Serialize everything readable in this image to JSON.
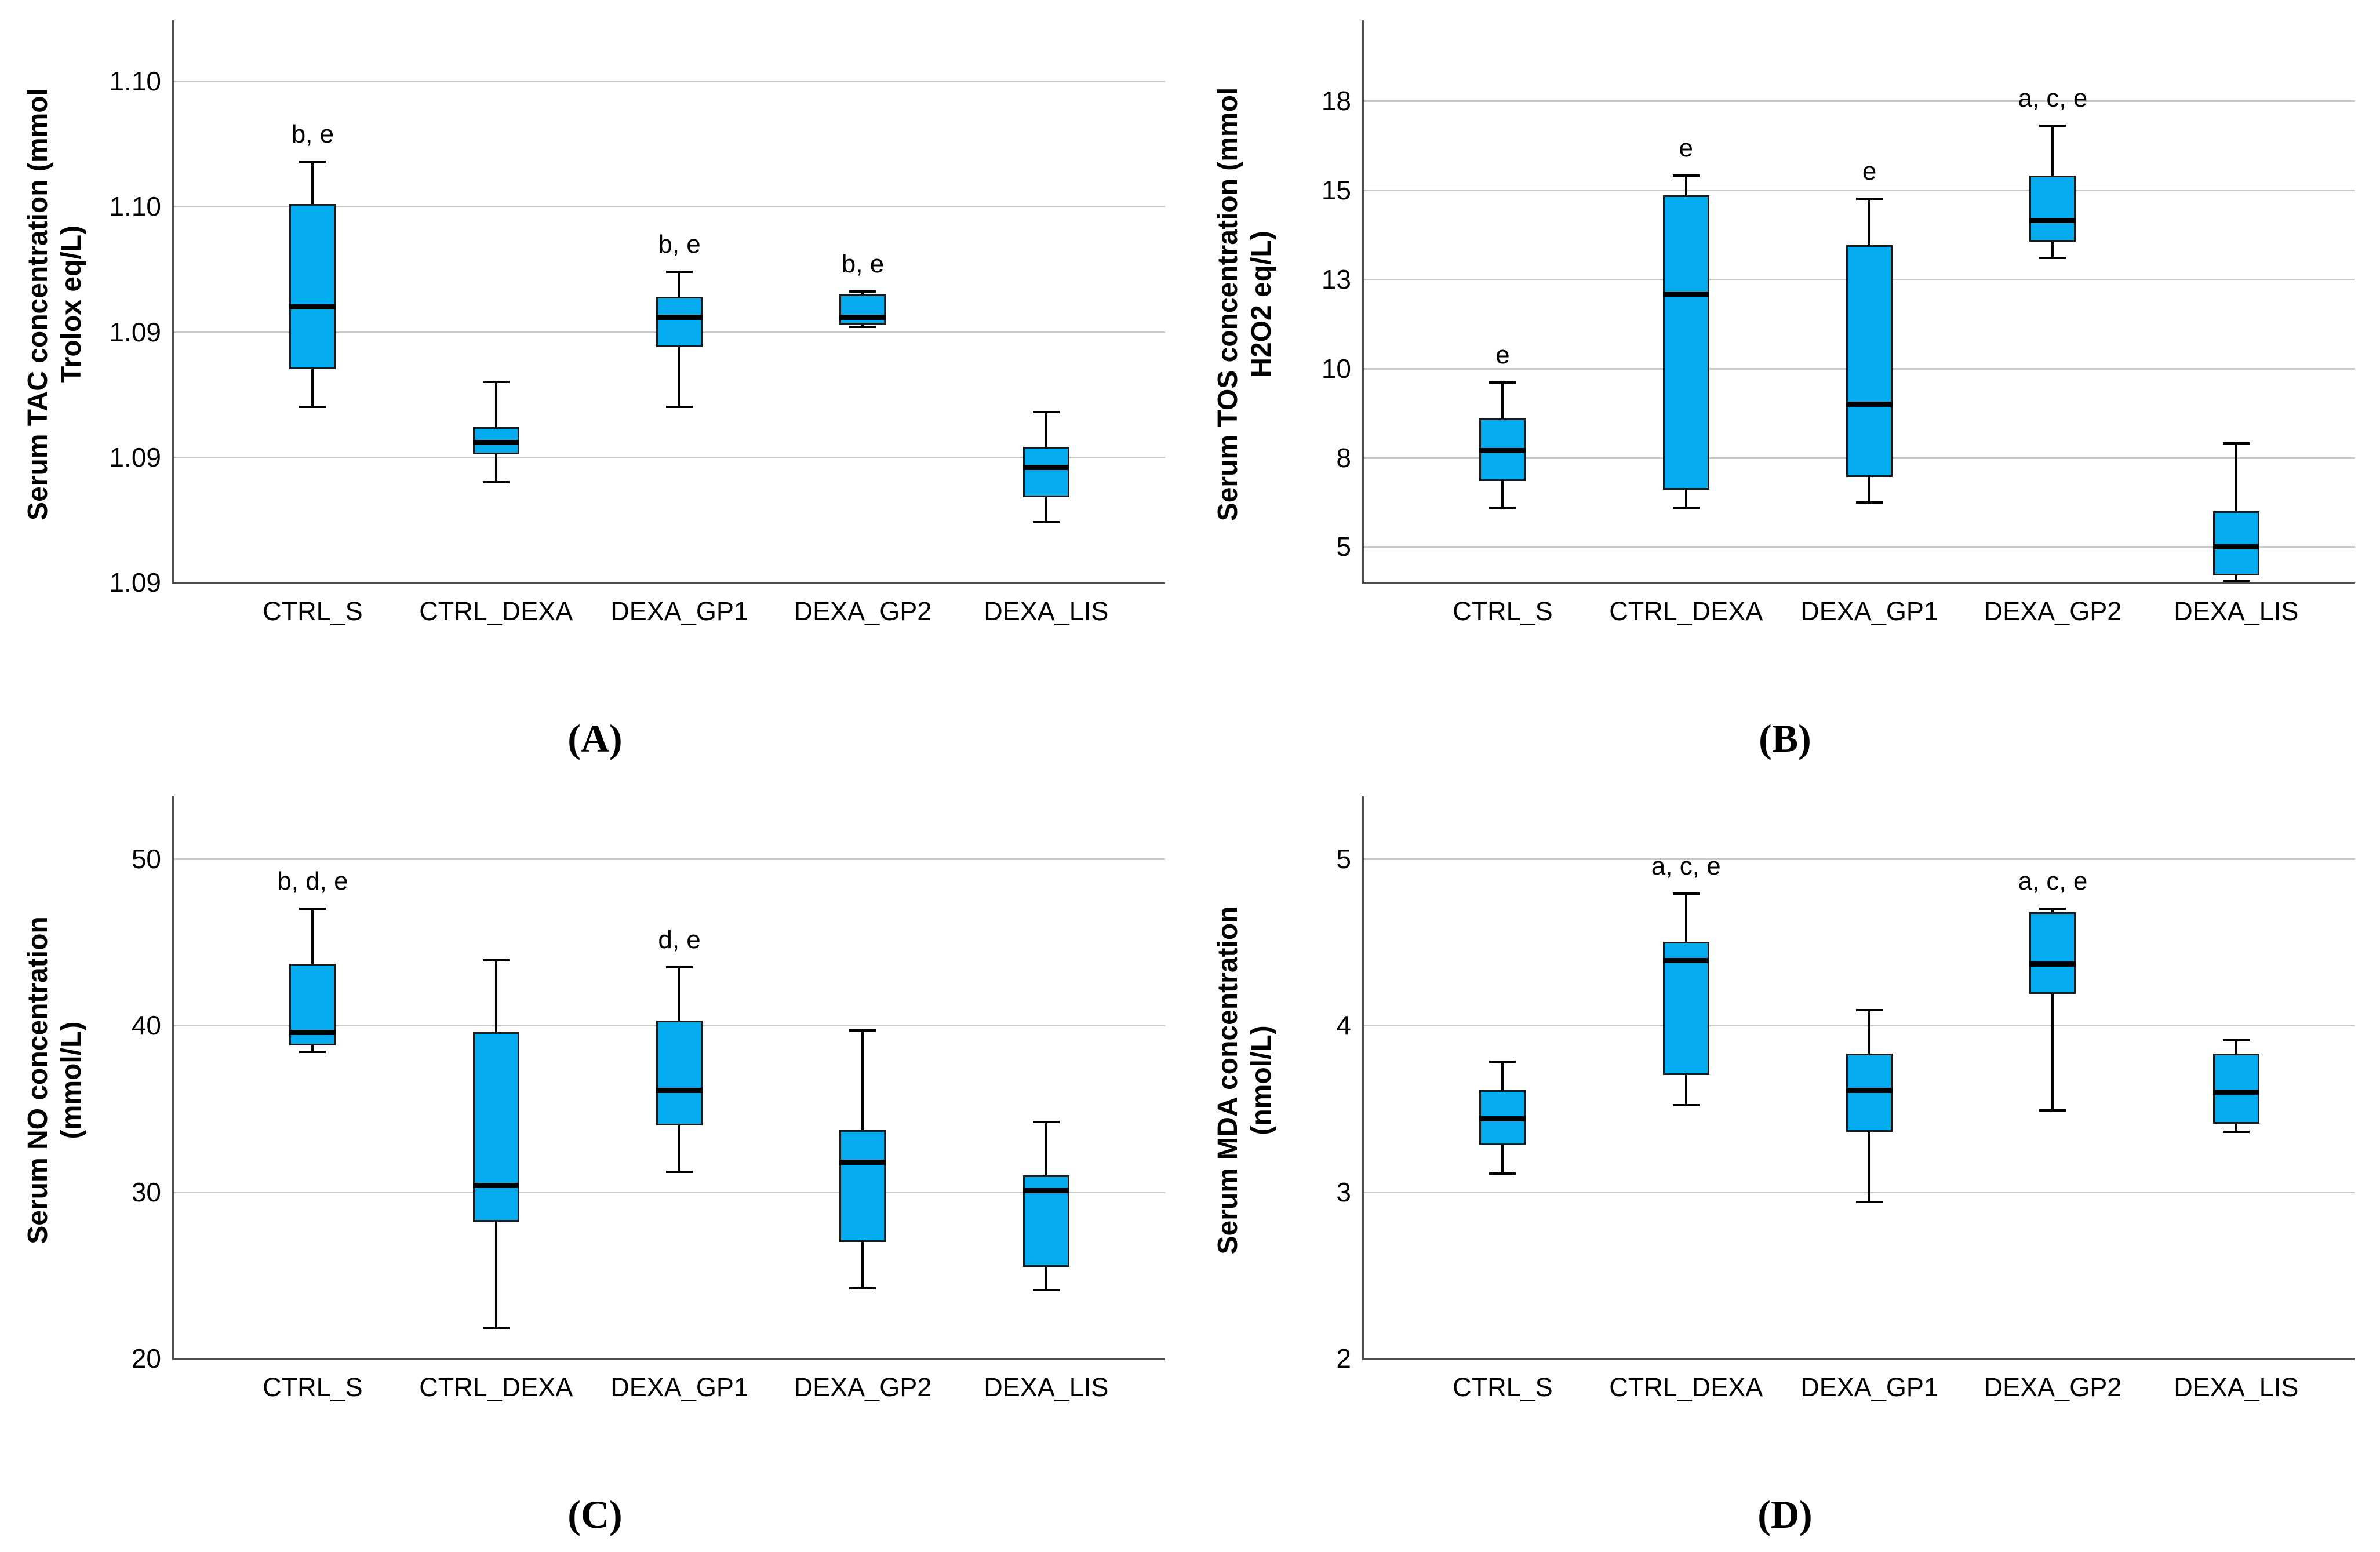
{
  "figure": {
    "background": "#ffffff",
    "panel_letters": [
      "(A)",
      "(B)",
      "(C)",
      "(D)"
    ]
  },
  "colors": {
    "box_fill": "#04acef",
    "box_border": "#1b1b1b",
    "median": "#000000",
    "whisker": "#000000",
    "gridline": "#c9c9c9",
    "axis": "#4d4d4d",
    "text": "#000000"
  },
  "layout_hints": {
    "grid": "2x2 panels",
    "legend": "none",
    "gridlines": "horizontal only"
  },
  "categories": [
    "CTRL_S",
    "CTRL_DEXA",
    "DEXA_GP1",
    "DEXA_GP2",
    "DEXA_LIS"
  ],
  "chart_data": [
    {
      "panel": "A",
      "letter": "(A)",
      "type": "box",
      "title_lines": [
        "Serum TAC concentration (mmol",
        "Trolox eq/L)"
      ],
      "ylabel": "Serum TAC concentration (mmol Trolox eq/L)",
      "ylim": [
        1.09,
        1.1011
      ],
      "ticks": [
        {
          "v": 1.09,
          "label": "1.09",
          "grid": false
        },
        {
          "v": 1.0925,
          "label": "1.09",
          "grid": true
        },
        {
          "v": 1.095,
          "label": "1.09",
          "grid": true
        },
        {
          "v": 1.0975,
          "label": "1.10",
          "grid": true
        },
        {
          "v": 1.1,
          "label": "1.10",
          "grid": true
        }
      ],
      "boxes": [
        {
          "category": "CTRL_S",
          "whisker_low": 1.0935,
          "q1": 1.09425,
          "median": 1.0955,
          "q3": 1.09755,
          "whisker_high": 1.0984,
          "annotation": "b, e"
        },
        {
          "category": "CTRL_DEXA",
          "whisker_low": 1.092,
          "q1": 1.09255,
          "median": 1.0928,
          "q3": 1.0931,
          "whisker_high": 1.094,
          "annotation": ""
        },
        {
          "category": "DEXA_GP1",
          "whisker_low": 1.0935,
          "q1": 1.0947,
          "median": 1.0953,
          "q3": 1.0957,
          "whisker_high": 1.0962,
          "annotation": "b, e"
        },
        {
          "category": "DEXA_GP2",
          "whisker_low": 1.0951,
          "q1": 1.09515,
          "median": 1.0953,
          "q3": 1.09575,
          "whisker_high": 1.0958,
          "annotation": "b, e"
        },
        {
          "category": "DEXA_LIS",
          "whisker_low": 1.0912,
          "q1": 1.0917,
          "median": 1.0923,
          "q3": 1.0927,
          "whisker_high": 1.0934,
          "annotation": ""
        }
      ]
    },
    {
      "panel": "B",
      "letter": "(B)",
      "type": "box",
      "title_lines": [
        "Serum TOS concentration (mmol",
        "H2O2 eq/L)"
      ],
      "ylabel": "Serum TOS concentration (mmol H2O2 eq/L)",
      "ylim": [
        4.0,
        19.6
      ],
      "ticks": [
        {
          "v": 5,
          "label": "5",
          "grid": true
        },
        {
          "v": 7.5,
          "label": "8",
          "grid": true
        },
        {
          "v": 10,
          "label": "10",
          "grid": true
        },
        {
          "v": 12.5,
          "label": "13",
          "grid": true
        },
        {
          "v": 15,
          "label": "15",
          "grid": true
        },
        {
          "v": 17.5,
          "label": "18",
          "grid": true
        }
      ],
      "boxes": [
        {
          "category": "CTRL_S",
          "whisker_low": 6.1,
          "q1": 6.85,
          "median": 7.7,
          "q3": 8.6,
          "whisker_high": 9.6,
          "annotation": "e"
        },
        {
          "category": "CTRL_DEXA",
          "whisker_low": 6.1,
          "q1": 6.6,
          "median": 12.1,
          "q3": 14.85,
          "whisker_high": 15.4,
          "annotation": "e"
        },
        {
          "category": "DEXA_GP1",
          "whisker_low": 6.25,
          "q1": 6.95,
          "median": 9.0,
          "q3": 13.45,
          "whisker_high": 14.75,
          "annotation": "e"
        },
        {
          "category": "DEXA_GP2",
          "whisker_low": 13.1,
          "q1": 13.55,
          "median": 14.15,
          "q3": 15.4,
          "whisker_high": 16.8,
          "annotation": "a, c, e"
        },
        {
          "category": "DEXA_LIS",
          "whisker_low": 4.05,
          "q1": 4.2,
          "median": 5.0,
          "q3": 6.0,
          "whisker_high": 7.9,
          "annotation": ""
        }
      ]
    },
    {
      "panel": "C",
      "letter": "(C)",
      "type": "box",
      "title_lines": [
        "Serum NO concentration",
        "(mmol/L)"
      ],
      "ylabel": "Serum NO concentration (mmol/L)",
      "ylim": [
        20,
        53.4
      ],
      "ticks": [
        {
          "v": 20,
          "label": "20",
          "grid": false
        },
        {
          "v": 30,
          "label": "30",
          "grid": true
        },
        {
          "v": 40,
          "label": "40",
          "grid": true
        },
        {
          "v": 50,
          "label": "50",
          "grid": true
        }
      ],
      "boxes": [
        {
          "category": "CTRL_S",
          "whisker_low": 38.4,
          "q1": 38.8,
          "median": 39.6,
          "q3": 43.7,
          "whisker_high": 47.0,
          "annotation": "b, d, e"
        },
        {
          "category": "CTRL_DEXA",
          "whisker_low": 21.8,
          "q1": 28.2,
          "median": 30.4,
          "q3": 39.6,
          "whisker_high": 43.9,
          "annotation": ""
        },
        {
          "category": "DEXA_GP1",
          "whisker_low": 31.2,
          "q1": 34.0,
          "median": 36.1,
          "q3": 40.3,
          "whisker_high": 43.5,
          "annotation": "d, e"
        },
        {
          "category": "DEXA_GP2",
          "whisker_low": 24.2,
          "q1": 27.0,
          "median": 31.8,
          "q3": 33.7,
          "whisker_high": 39.7,
          "annotation": ""
        },
        {
          "category": "DEXA_LIS",
          "whisker_low": 24.1,
          "q1": 25.5,
          "median": 30.1,
          "q3": 31.0,
          "whisker_high": 34.2,
          "annotation": ""
        }
      ]
    },
    {
      "panel": "D",
      "letter": "(D)",
      "type": "box",
      "title_lines": [
        "Serum MDA concentration",
        "(nmol/L)"
      ],
      "ylabel": "Serum MDA concentration (nmol/L)",
      "ylim": [
        2,
        5.34
      ],
      "ticks": [
        {
          "v": 2,
          "label": "2",
          "grid": false
        },
        {
          "v": 3,
          "label": "3",
          "grid": true
        },
        {
          "v": 4,
          "label": "4",
          "grid": true
        },
        {
          "v": 5,
          "label": "5",
          "grid": true
        }
      ],
      "boxes": [
        {
          "category": "CTRL_S",
          "whisker_low": 3.11,
          "q1": 3.28,
          "median": 3.44,
          "q3": 3.61,
          "whisker_high": 3.78,
          "annotation": ""
        },
        {
          "category": "CTRL_DEXA",
          "whisker_low": 3.52,
          "q1": 3.7,
          "median": 4.39,
          "q3": 4.5,
          "whisker_high": 4.79,
          "annotation": "a, c, e"
        },
        {
          "category": "DEXA_GP1",
          "whisker_low": 2.94,
          "q1": 3.36,
          "median": 3.61,
          "q3": 3.83,
          "whisker_high": 4.09,
          "annotation": ""
        },
        {
          "category": "DEXA_GP2",
          "whisker_low": 3.49,
          "q1": 4.19,
          "median": 4.37,
          "q3": 4.68,
          "whisker_high": 4.7,
          "annotation": "a, c, e"
        },
        {
          "category": "DEXA_LIS",
          "whisker_low": 3.36,
          "q1": 3.41,
          "median": 3.6,
          "q3": 3.83,
          "whisker_high": 3.91,
          "annotation": ""
        }
      ]
    }
  ]
}
